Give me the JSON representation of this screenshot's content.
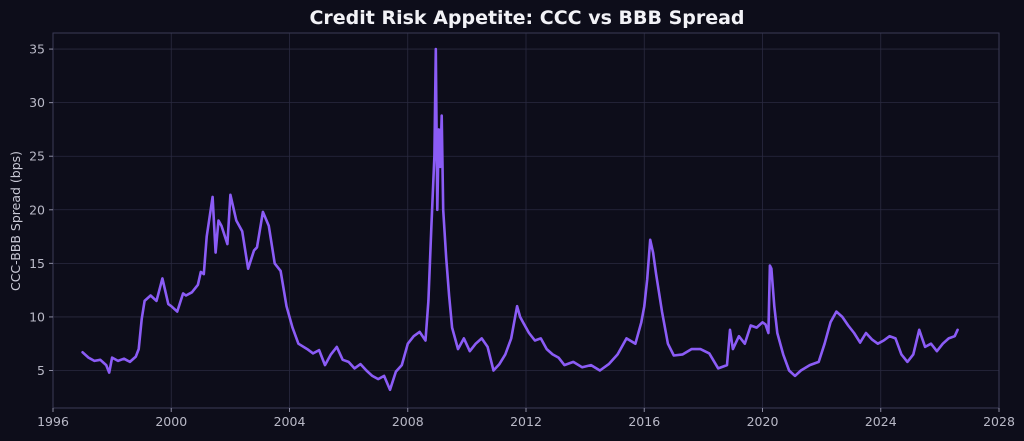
{
  "chart_data": {
    "type": "line",
    "title": "Credit Risk Appetite: CCC vs BBB Spread",
    "xlabel": "",
    "ylabel": "CCC-BBB Spread (bps)",
    "xlim": [
      1996,
      2028
    ],
    "ylim": [
      1.5,
      36.5
    ],
    "x_ticks": [
      "1996",
      "2000",
      "2004",
      "2008",
      "2012",
      "2016",
      "2020",
      "2024",
      "2028"
    ],
    "y_ticks": [
      "5",
      "10",
      "15",
      "20",
      "25",
      "30",
      "35"
    ],
    "grid": true,
    "line_color": "#8b5cf6",
    "series": [
      {
        "x": [
          1997.0,
          1997.2,
          1997.4,
          1997.6,
          1997.8,
          1997.9,
          1998.0,
          1998.2,
          1998.4,
          1998.6,
          1998.8,
          1998.9,
          1999.0,
          1999.1,
          1999.3,
          1999.5,
          1999.7,
          1999.9,
          2000.0,
          2000.2,
          2000.4,
          2000.5,
          2000.7,
          2000.9,
          2001.0,
          2001.1,
          2001.2,
          2001.4,
          2001.5,
          2001.6,
          2001.7,
          2001.9,
          2002.0,
          2002.2,
          2002.4,
          2002.6,
          2002.8,
          2002.9,
          2003.1,
          2003.3,
          2003.5,
          2003.7,
          2003.9,
          2004.1,
          2004.3,
          2004.6,
          2004.8,
          2005.0,
          2005.2,
          2005.4,
          2005.6,
          2005.8,
          2006.0,
          2006.2,
          2006.4,
          2006.6,
          2006.8,
          2007.0,
          2007.2,
          2007.4,
          2007.6,
          2007.8,
          2008.0,
          2008.2,
          2008.4,
          2008.6,
          2008.7,
          2008.8,
          2008.9,
          2008.95,
          2009.0,
          2009.05,
          2009.1,
          2009.15,
          2009.2,
          2009.3,
          2009.4,
          2009.5,
          2009.7,
          2009.9,
          2010.1,
          2010.3,
          2010.5,
          2010.7,
          2010.9,
          2011.1,
          2011.3,
          2011.5,
          2011.7,
          2011.8,
          2011.9,
          2012.1,
          2012.3,
          2012.5,
          2012.7,
          2012.9,
          2013.1,
          2013.3,
          2013.6,
          2013.9,
          2014.2,
          2014.5,
          2014.8,
          2015.1,
          2015.4,
          2015.7,
          2015.9,
          2016.0,
          2016.1,
          2016.2,
          2016.3,
          2016.4,
          2016.6,
          2016.8,
          2017.0,
          2017.3,
          2017.6,
          2017.9,
          2018.2,
          2018.5,
          2018.8,
          2018.9,
          2019.0,
          2019.2,
          2019.4,
          2019.6,
          2019.8,
          2020.0,
          2020.1,
          2020.2,
          2020.25,
          2020.3,
          2020.4,
          2020.5,
          2020.7,
          2020.9,
          2021.1,
          2021.3,
          2021.6,
          2021.9,
          2022.1,
          2022.3,
          2022.5,
          2022.7,
          2022.9,
          2023.1,
          2023.3,
          2023.5,
          2023.7,
          2023.9,
          2024.1,
          2024.3,
          2024.5,
          2024.7,
          2024.9,
          2025.1,
          2025.3,
          2025.5,
          2025.7,
          2025.9,
          2026.1,
          2026.3,
          2026.5,
          2026.6
        ],
        "y": [
          6.7,
          6.2,
          5.9,
          6.0,
          5.5,
          4.8,
          6.2,
          5.9,
          6.1,
          5.8,
          6.3,
          7.0,
          9.8,
          11.5,
          12.0,
          11.5,
          13.6,
          11.2,
          11.0,
          10.5,
          12.2,
          12.0,
          12.3,
          13.0,
          14.2,
          14.0,
          17.5,
          21.2,
          16.0,
          19.0,
          18.5,
          16.8,
          21.4,
          19.0,
          18.0,
          14.5,
          16.2,
          16.5,
          19.8,
          18.5,
          15.0,
          14.3,
          11.0,
          9.0,
          7.5,
          7.0,
          6.6,
          6.9,
          5.5,
          6.5,
          7.2,
          6.0,
          5.8,
          5.2,
          5.6,
          5.0,
          4.5,
          4.2,
          4.5,
          3.2,
          4.9,
          5.5,
          7.5,
          8.2,
          8.6,
          7.8,
          11.5,
          18.5,
          25.0,
          35.0,
          20.0,
          27.5,
          24.0,
          28.8,
          20.0,
          15.5,
          12.0,
          9.0,
          7.0,
          8.0,
          6.8,
          7.5,
          8.0,
          7.2,
          5.0,
          5.6,
          6.5,
          8.0,
          11.0,
          10.0,
          9.5,
          8.5,
          7.8,
          8.0,
          7.0,
          6.5,
          6.2,
          5.5,
          5.8,
          5.3,
          5.5,
          5.0,
          5.6,
          6.5,
          8.0,
          7.5,
          9.5,
          11.0,
          13.5,
          17.2,
          16.0,
          14.0,
          10.5,
          7.5,
          6.4,
          6.5,
          7.0,
          7.0,
          6.6,
          5.2,
          5.5,
          8.8,
          7.0,
          8.2,
          7.5,
          9.2,
          9.0,
          9.5,
          9.3,
          8.5,
          14.8,
          14.5,
          11.0,
          8.5,
          6.5,
          5.0,
          4.5,
          5.0,
          5.5,
          5.8,
          7.5,
          9.5,
          10.5,
          10.0,
          9.2,
          8.5,
          7.6,
          8.5,
          7.9,
          7.5,
          7.8,
          8.2,
          8.0,
          6.5,
          5.8,
          6.5,
          8.8,
          7.2,
          7.5,
          6.8,
          7.5,
          8.0,
          8.2,
          8.8
        ]
      }
    ]
  }
}
